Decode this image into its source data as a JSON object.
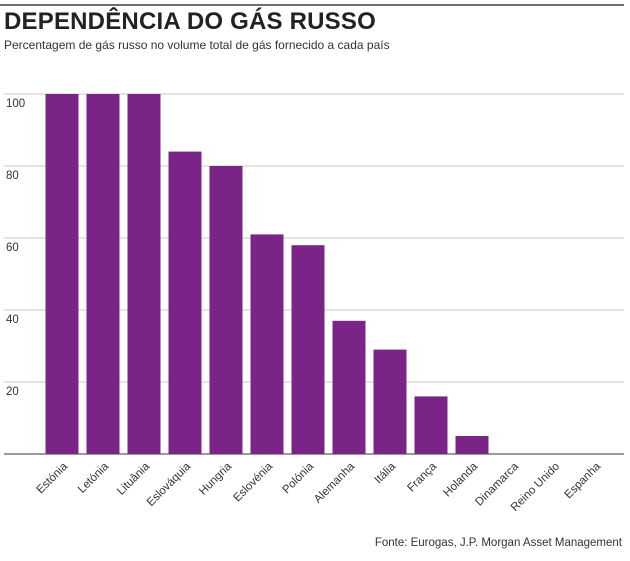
{
  "title": "DEPENDÊNCIA DO GÁS RUSSO",
  "subtitle": "Percentagem de gás russo no volume total de gás fornecido a cada país",
  "source": "Fonte: Eurogas, J.P. Morgan Asset Management",
  "colors": {
    "bar": "#7b2488",
    "grid": "#c8c8c8",
    "axis": "#7a7a7a",
    "text": "#333333"
  },
  "chart_data": {
    "type": "bar",
    "categories": [
      "Estónia",
      "Letónia",
      "Lituânia",
      "Eslováquia",
      "Hungria",
      "Eslovénia",
      "Polónia",
      "Alemanha",
      "Itália",
      "França",
      "Holanda",
      "Dinamarca",
      "Reino Unido",
      "Espanha"
    ],
    "values": [
      100,
      100,
      100,
      84,
      80,
      61,
      58,
      37,
      29,
      16,
      5,
      0,
      0,
      0
    ],
    "yticks": [
      20,
      40,
      60,
      80,
      100
    ],
    "ylim": [
      0,
      100
    ],
    "grid": true,
    "legend": "none"
  }
}
